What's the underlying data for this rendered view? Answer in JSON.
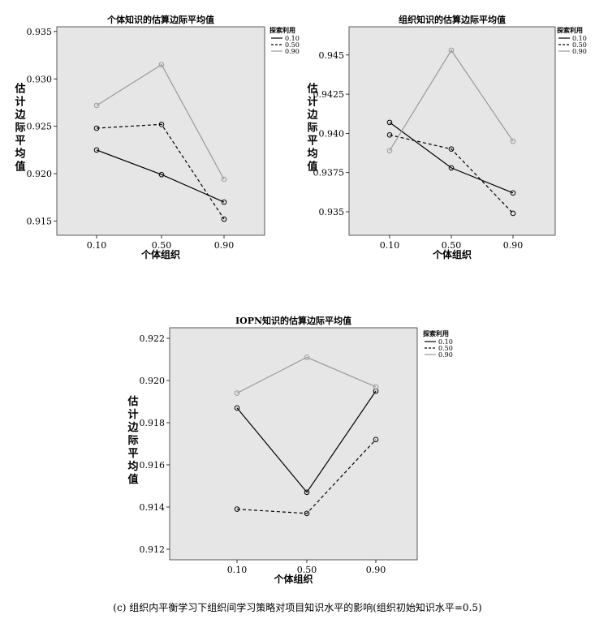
{
  "caption": "(c) 组织内平衡学习下组织间学习策略对项目知识水平的影响(组织初始知识水平=0.5)",
  "chart_data": [
    {
      "type": "line",
      "title": "个体知识的估算边际平均值",
      "xlabel": "个体组织",
      "ylabel": "估计边际平均值",
      "categories": [
        "0.10",
        "0.50",
        "0.90"
      ],
      "ylim": [
        0.9135,
        0.9355
      ],
      "yticks": [
        0.915,
        0.92,
        0.925,
        0.93,
        0.935
      ],
      "ytick_labels": [
        "0.915",
        "0.920",
        "0.925",
        "0.930",
        "0.935"
      ],
      "legend_title": "探索利用",
      "grid": false,
      "series": [
        {
          "name": "0.10",
          "style": "solid",
          "color": "#000000",
          "values": [
            0.9225,
            0.9199,
            0.917
          ]
        },
        {
          "name": "0.50",
          "style": "dashed",
          "color": "#000000",
          "values": [
            0.9248,
            0.9252,
            0.9152
          ]
        },
        {
          "name": "0.90",
          "style": "solid",
          "color": "#999999",
          "values": [
            0.9272,
            0.9315,
            0.9194
          ]
        }
      ]
    },
    {
      "type": "line",
      "title": "组织知识的估算边际平均值",
      "xlabel": "个体组织",
      "ylabel": "估计边际平均值",
      "categories": [
        "0.10",
        "0.50",
        "0.90"
      ],
      "ylim": [
        0.9335,
        0.9468
      ],
      "yticks": [
        0.935,
        0.9375,
        0.94,
        0.9425,
        0.945
      ],
      "ytick_labels": [
        "0.935",
        "0.9375",
        "0.940",
        "0.9425",
        "0.945"
      ],
      "legend_title": "探索利用",
      "grid": false,
      "series": [
        {
          "name": "0.10",
          "style": "solid",
          "color": "#000000",
          "values": [
            0.9407,
            0.9378,
            0.9362
          ]
        },
        {
          "name": "0.50",
          "style": "dashed",
          "color": "#000000",
          "values": [
            0.9399,
            0.939,
            0.9349
          ]
        },
        {
          "name": "0.90",
          "style": "solid",
          "color": "#999999",
          "values": [
            0.9389,
            0.9453,
            0.9395
          ]
        }
      ]
    },
    {
      "type": "line",
      "title": "IOPN知识的估算边际平均值",
      "xlabel": "个体组织",
      "ylabel": "估计边际平均值",
      "categories": [
        "0.10",
        "0.50",
        "0.90"
      ],
      "ylim": [
        0.9115,
        0.9225
      ],
      "yticks": [
        0.912,
        0.914,
        0.916,
        0.918,
        0.92,
        0.922
      ],
      "ytick_labels": [
        "0.912",
        "0.914",
        "0.916",
        "0.918",
        "0.920",
        "0.922"
      ],
      "legend_title": "探索利用",
      "grid": false,
      "series": [
        {
          "name": "0.10",
          "style": "solid",
          "color": "#000000",
          "values": [
            0.9187,
            0.9147,
            0.9195
          ]
        },
        {
          "name": "0.50",
          "style": "dashed",
          "color": "#000000",
          "values": [
            0.9139,
            0.9137,
            0.9172
          ]
        },
        {
          "name": "0.90",
          "style": "solid",
          "color": "#999999",
          "values": [
            0.9194,
            0.9211,
            0.9197
          ]
        }
      ]
    }
  ]
}
